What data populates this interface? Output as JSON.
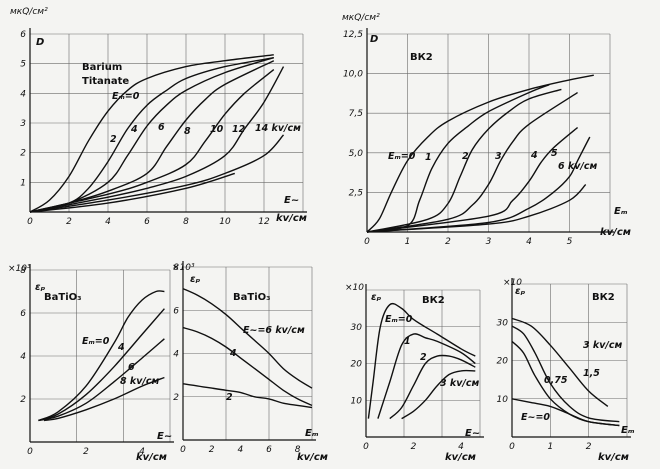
{
  "chart_data": [
    {
      "type": "line",
      "title": "Barium Titanate",
      "ylabel": "D",
      "yunit": "мкQ/см²",
      "xlabel": "E~",
      "xlim": [
        0,
        14
      ],
      "ylim": [
        0,
        6
      ],
      "xticks": [
        "0",
        "2",
        "4",
        "6",
        "8",
        "10",
        "12"
      ],
      "xunit": "kv/см",
      "yticks": [
        "1",
        "2",
        "3",
        "4",
        "5",
        "6"
      ],
      "series_labels": [
        "Eₘ=0",
        "2",
        "4",
        "6",
        "8",
        "10",
        "12",
        "14 kv/см"
      ],
      "series": [
        {
          "x": [
            0,
            1,
            2,
            3,
            4,
            5,
            6,
            8,
            10,
            12.5
          ],
          "y": [
            0,
            0.4,
            1.2,
            2.4,
            3.4,
            4.1,
            4.5,
            4.9,
            5.1,
            5.3
          ]
        },
        {
          "x": [
            0,
            2,
            3,
            4,
            5,
            6,
            7,
            8,
            10,
            12.5
          ],
          "y": [
            0,
            0.3,
            0.8,
            1.7,
            2.8,
            3.6,
            4.1,
            4.5,
            4.9,
            5.2
          ]
        },
        {
          "x": [
            0,
            2,
            4,
            5,
            6,
            7,
            8,
            10,
            12.5
          ],
          "y": [
            0,
            0.3,
            1.0,
            1.9,
            2.9,
            3.6,
            4.1,
            4.7,
            5.2
          ]
        },
        {
          "x": [
            0,
            2,
            4,
            6,
            7,
            8,
            9,
            10,
            12.5
          ],
          "y": [
            0,
            0.3,
            0.7,
            1.3,
            2.2,
            3.1,
            3.8,
            4.3,
            5.1
          ]
        },
        {
          "x": [
            0,
            4,
            6,
            8,
            9,
            10,
            11,
            12.5
          ],
          "y": [
            0,
            0.6,
            1.0,
            1.6,
            2.4,
            3.3,
            4.0,
            4.8
          ]
        },
        {
          "x": [
            0,
            4,
            6,
            8,
            10,
            11,
            12,
            13
          ],
          "y": [
            0,
            0.5,
            0.8,
            1.2,
            1.9,
            2.8,
            3.7,
            4.9
          ]
        },
        {
          "x": [
            0,
            4,
            8,
            10,
            12,
            13
          ],
          "y": [
            0,
            0.4,
            0.9,
            1.3,
            1.9,
            2.6
          ]
        },
        {
          "x": [
            0,
            4,
            8,
            10.5
          ],
          "y": [
            0,
            0.3,
            0.8,
            1.3
          ]
        }
      ]
    },
    {
      "type": "line",
      "title": "ВК2",
      "ylabel": "D",
      "yunit": "мкQ/см²",
      "xlabel": "Eₘ",
      "xlim": [
        0,
        6
      ],
      "ylim": [
        0,
        12.5
      ],
      "xticks": [
        "0",
        "1",
        "2",
        "3",
        "4",
        "5"
      ],
      "xunit": "kv/см",
      "yticks": [
        "2,5",
        "5,0",
        "7,5",
        "10,0",
        "12,5"
      ],
      "series_labels": [
        "Eₘ=0",
        "1",
        "2",
        "3",
        "4",
        "5",
        "6 kv/см"
      ],
      "series": [
        {
          "x": [
            0,
            0.3,
            0.6,
            1,
            1.5,
            2,
            3,
            4,
            5,
            5.6
          ],
          "y": [
            0,
            0.8,
            2.5,
            4.5,
            6.0,
            7.0,
            8.2,
            9.0,
            9.6,
            9.9
          ]
        },
        {
          "x": [
            0,
            1,
            1.3,
            1.6,
            2,
            2.5,
            3,
            4,
            4.5
          ],
          "y": [
            0,
            0.4,
            2.0,
            4.0,
            5.6,
            6.7,
            7.6,
            8.8,
            9.3
          ]
        },
        {
          "x": [
            0,
            1.5,
            2,
            2.3,
            2.6,
            3,
            3.5,
            4,
            4.8
          ],
          "y": [
            0,
            0.8,
            1.8,
            3.5,
            5.2,
            6.5,
            7.6,
            8.4,
            9.0
          ]
        },
        {
          "x": [
            0,
            2,
            2.6,
            3,
            3.3,
            3.6,
            4,
            5.2
          ],
          "y": [
            0,
            0.8,
            1.7,
            3.0,
            4.5,
            5.7,
            6.8,
            8.8
          ]
        },
        {
          "x": [
            0,
            3,
            3.6,
            4,
            4.3,
            4.6,
            5.2
          ],
          "y": [
            0,
            1.0,
            2.0,
            3.2,
            4.4,
            5.3,
            6.6
          ]
        },
        {
          "x": [
            0,
            3,
            4,
            4.6,
            5,
            5.2,
            5.5
          ],
          "y": [
            0,
            0.6,
            1.5,
            2.5,
            3.5,
            4.5,
            6.0
          ]
        },
        {
          "x": [
            0,
            3,
            4,
            5,
            5.4
          ],
          "y": [
            0,
            0.5,
            1.0,
            2.0,
            3.0
          ]
        }
      ]
    },
    {
      "type": "line",
      "title": "BaTiO₃",
      "ylabel": "εₚ",
      "yunit": "×10³",
      "xlabel": "E~",
      "xlim": [
        0,
        5
      ],
      "ylim": [
        0,
        8
      ],
      "xticks": [
        "0",
        "2",
        "4"
      ],
      "xunit": "kv/см",
      "yticks": [
        "2",
        "4",
        "6",
        "8"
      ],
      "series_labels": [
        "Eₘ=0",
        "4",
        "6",
        "8 kv/см"
      ],
      "series": [
        {
          "x": [
            0.3,
            1,
            2,
            3,
            3.5,
            4,
            4.5,
            4.8
          ],
          "y": [
            1.0,
            1.4,
            2.6,
            4.6,
            5.8,
            6.6,
            7.0,
            7.0
          ]
        },
        {
          "x": [
            0.3,
            1,
            2,
            3,
            4,
            4.8
          ],
          "y": [
            1.0,
            1.3,
            2.2,
            3.5,
            5.0,
            6.2
          ]
        },
        {
          "x": [
            0.3,
            1,
            2,
            3,
            4,
            4.8
          ],
          "y": [
            1.0,
            1.2,
            1.8,
            2.8,
            3.9,
            4.8
          ]
        },
        {
          "x": [
            0.5,
            1,
            2,
            3,
            4,
            4.8
          ],
          "y": [
            1.0,
            1.1,
            1.5,
            2.0,
            2.6,
            3.0
          ]
        }
      ]
    },
    {
      "type": "line",
      "title": "BaTiO₃",
      "ylabel": "εₚ",
      "yunit": "×10³",
      "xlabel": "Eₘ",
      "xlim": [
        0,
        9
      ],
      "ylim": [
        0,
        8
      ],
      "xticks": [
        "0",
        "2",
        "4",
        "6",
        "8"
      ],
      "xunit": "kv/см",
      "yticks": [
        "2",
        "4",
        "6",
        "8"
      ],
      "series_labels": [
        "E~=6 kv/см",
        "4",
        "2"
      ],
      "series": [
        {
          "x": [
            0,
            1,
            2,
            3,
            4,
            5,
            6,
            7,
            8,
            9
          ],
          "y": [
            7.0,
            6.7,
            6.3,
            5.8,
            5.2,
            4.6,
            4.0,
            3.3,
            2.8,
            2.4
          ]
        },
        {
          "x": [
            0,
            1,
            2,
            3,
            4,
            5,
            6,
            7,
            8,
            9
          ],
          "y": [
            5.2,
            5.0,
            4.7,
            4.3,
            3.8,
            3.3,
            2.8,
            2.3,
            1.9,
            1.6
          ]
        },
        {
          "x": [
            0,
            1,
            2,
            3,
            4,
            5,
            6,
            7,
            8,
            9
          ],
          "y": [
            2.6,
            2.5,
            2.4,
            2.3,
            2.2,
            2.0,
            1.9,
            1.7,
            1.6,
            1.5
          ]
        }
      ]
    },
    {
      "type": "line",
      "title": "ВК2",
      "ylabel": "εₚ",
      "yunit": "×10",
      "xlabel": "E~",
      "xlim": [
        0,
        4.8
      ],
      "ylim": [
        0,
        40
      ],
      "xticks": [
        "0",
        "2",
        "4"
      ],
      "xunit": "kv/см",
      "yticks": [
        "10",
        "20",
        "30"
      ],
      "series_labels": [
        "Eₘ=0",
        "1",
        "2",
        "3 kv/см"
      ],
      "series": [
        {
          "x": [
            0.1,
            0.3,
            0.6,
            1,
            1.5,
            2,
            3,
            4,
            4.6
          ],
          "y": [
            5,
            15,
            30,
            36,
            35,
            32,
            28,
            24,
            22
          ]
        },
        {
          "x": [
            0.5,
            1,
            1.5,
            2,
            2.5,
            3,
            4,
            4.6
          ],
          "y": [
            5,
            15,
            25,
            28,
            27,
            26,
            23,
            20
          ]
        },
        {
          "x": [
            1,
            1.5,
            2,
            2.5,
            3,
            3.5,
            4,
            4.6
          ],
          "y": [
            5,
            8,
            14,
            20,
            22,
            22,
            21,
            19
          ]
        },
        {
          "x": [
            1.5,
            2,
            2.5,
            3,
            3.5,
            4,
            4.6
          ],
          "y": [
            5,
            7,
            10,
            14,
            17,
            18,
            18
          ]
        }
      ]
    },
    {
      "type": "line",
      "title": "ВК2",
      "ylabel": "εₚ",
      "yunit": "×10",
      "xlabel": "Eₘ",
      "xlim": [
        0,
        3
      ],
      "ylim": [
        0,
        40
      ],
      "xticks": [
        "0",
        "1",
        "2"
      ],
      "xunit": "kv/см",
      "yticks": [
        "10",
        "20",
        "30"
      ],
      "series_labels": [
        "3 kv/см",
        "1,5",
        "0,75",
        "E~=0"
      ],
      "series": [
        {
          "x": [
            0,
            0.5,
            1,
            1.5,
            2,
            2.5
          ],
          "y": [
            31,
            29,
            24,
            18,
            12,
            8
          ]
        },
        {
          "x": [
            0,
            0.3,
            0.6,
            1,
            1.5,
            2,
            2.8
          ],
          "y": [
            29,
            27,
            22,
            14,
            8,
            5,
            4
          ]
        },
        {
          "x": [
            0,
            0.3,
            0.6,
            1,
            1.5,
            2,
            2.8
          ],
          "y": [
            25,
            22,
            16,
            10,
            6,
            4,
            3
          ]
        },
        {
          "x": [
            0,
            0.5,
            1,
            1.5,
            2,
            2.8
          ],
          "y": [
            10,
            9,
            8,
            6,
            4,
            3
          ]
        }
      ]
    }
  ]
}
